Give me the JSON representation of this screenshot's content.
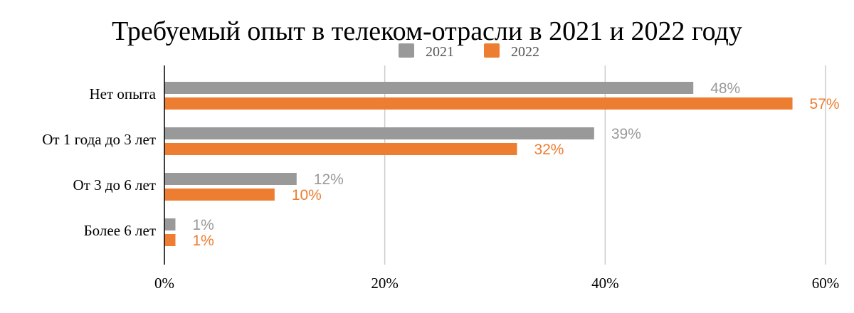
{
  "chart_data": {
    "type": "bar",
    "orientation": "horizontal",
    "title": "Требуемый опыт в телеком-отрасли в 2021 и 2022 году",
    "categories": [
      "Нет опыта",
      "От 1 года до 3 лет",
      "От 3 до 6 лет",
      "Более 6 лет"
    ],
    "series": [
      {
        "name": "2021",
        "color": "#999999",
        "values": [
          48,
          39,
          12,
          1
        ],
        "labels": [
          "48%",
          "39%",
          "12%",
          "1%"
        ]
      },
      {
        "name": "2022",
        "color": "#ed7d31",
        "values": [
          57,
          32,
          10,
          1
        ],
        "labels": [
          "57%",
          "32%",
          "10%",
          "1%"
        ]
      }
    ],
    "xlim": [
      0,
      60
    ],
    "ticks": [
      0,
      20,
      40,
      60
    ],
    "tick_labels": [
      "0%",
      "20%",
      "40%",
      "60%"
    ],
    "grid": true,
    "legend_position": "top"
  }
}
